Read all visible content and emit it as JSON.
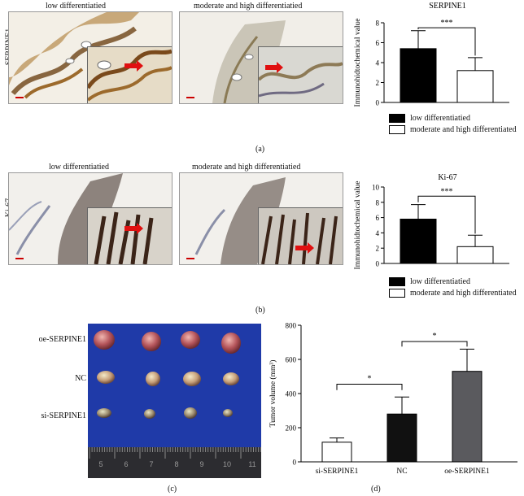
{
  "panel_a": {
    "row_label": "SERPINE1",
    "image_titles": [
      "low differentiatied",
      "moderate and high differentiatied"
    ],
    "label": "(a)"
  },
  "panel_b": {
    "row_label": "Ki-67",
    "image_titles": [
      "low differentiatied",
      "moderate and high differentiatied"
    ],
    "label": "(b)"
  },
  "panel_c": {
    "rows": [
      "oe-SERPINE1",
      "NC",
      "si-SERPINE1"
    ],
    "ruler_numbers": [
      "5",
      "6",
      "7",
      "8",
      "9",
      "10",
      "11"
    ],
    "label": "(c)"
  },
  "panel_d": {
    "label": "(d)"
  },
  "colors": {
    "bar_black": "#000000",
    "bar_white": "#ffffff",
    "bar_gray": "#5a5a5e",
    "photo_blue": "#1f3aa8",
    "stain_brown": "#7a4a1c"
  },
  "chart_data": [
    {
      "id": "serpine1",
      "type": "bar",
      "title": "SERPINE1",
      "ylabel": "Immunohidtochemical value",
      "ylim": [
        0,
        8
      ],
      "yticks": [
        "0",
        "2",
        "4",
        "6",
        "8"
      ],
      "categories": [
        "low differentiatied",
        "moderate and high differentiatied"
      ],
      "values": [
        5.4,
        3.2
      ],
      "errors": [
        1.8,
        1.3
      ],
      "colors": [
        "#000000",
        "#ffffff"
      ],
      "significance": "***",
      "legend": [
        "low differentiatied",
        "moderate and high differentiated"
      ]
    },
    {
      "id": "ki67",
      "type": "bar",
      "title": "Ki-67",
      "ylabel": "Immunohidtochemical value",
      "ylim": [
        0,
        10
      ],
      "yticks": [
        "0",
        "2",
        "4",
        "6",
        "8",
        "10"
      ],
      "categories": [
        "low differentiatied",
        "moderate and high differentiatied"
      ],
      "values": [
        5.8,
        2.2
      ],
      "errors": [
        1.9,
        1.5
      ],
      "colors": [
        "#000000",
        "#ffffff"
      ],
      "significance": "***",
      "legend": [
        "low differentiatied",
        "moderate and high differentiated"
      ]
    },
    {
      "id": "tumor",
      "type": "bar",
      "ylabel": "Tumor volume (mm³)",
      "ylim": [
        0,
        800
      ],
      "yticks": [
        "0",
        "200",
        "400",
        "600",
        "800"
      ],
      "categories": [
        "si-SERPINE1",
        "NC",
        "oe-SERPINE1"
      ],
      "values": [
        115,
        280,
        530
      ],
      "errors": [
        25,
        100,
        130
      ],
      "colors": [
        "#ffffff",
        "#111111",
        "#5a5a5e"
      ],
      "significance": [
        "*",
        "*"
      ]
    }
  ]
}
